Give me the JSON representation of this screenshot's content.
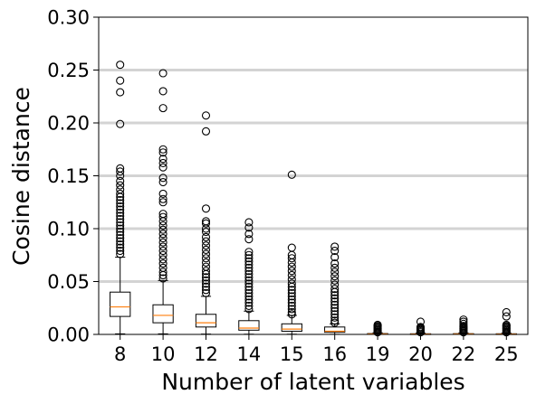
{
  "chart_data": {
    "type": "box",
    "title": "",
    "xlabel": "Number of latent variables",
    "ylabel": "Cosine distance",
    "ylim": [
      0.0,
      0.3
    ],
    "yticks": [
      "0.00",
      "0.05",
      "0.10",
      "0.15",
      "0.20",
      "0.25",
      "0.30"
    ],
    "grid": "horizontal",
    "categories": [
      "8",
      "10",
      "12",
      "14",
      "15",
      "16",
      "19",
      "20",
      "22",
      "25"
    ],
    "boxes": [
      {
        "category": "8",
        "q1": 0.017,
        "median": 0.026,
        "q3": 0.04,
        "whisker_low": 0.0005,
        "whisker_high": 0.073,
        "outliers": [
          0.255,
          0.24,
          0.229,
          0.199,
          0.157,
          0.154,
          0.15,
          0.145,
          0.141,
          0.137,
          0.133,
          0.13,
          0.127,
          0.124,
          0.121,
          0.118,
          0.115,
          0.112,
          0.109,
          0.106,
          0.103,
          0.1,
          0.097,
          0.094,
          0.091,
          0.088,
          0.085,
          0.082,
          0.079,
          0.076
        ]
      },
      {
        "category": "10",
        "q1": 0.011,
        "median": 0.018,
        "q3": 0.028,
        "whisker_low": 0.0005,
        "whisker_high": 0.051,
        "outliers": [
          0.247,
          0.23,
          0.214,
          0.175,
          0.172,
          0.166,
          0.162,
          0.158,
          0.148,
          0.144,
          0.133,
          0.128,
          0.125,
          0.114,
          0.111,
          0.107,
          0.103,
          0.099,
          0.095,
          0.091,
          0.087,
          0.083,
          0.079,
          0.075,
          0.071,
          0.067,
          0.063,
          0.059,
          0.056,
          0.053
        ]
      },
      {
        "category": "12",
        "q1": 0.007,
        "median": 0.011,
        "q3": 0.019,
        "whisker_low": 0.0003,
        "whisker_high": 0.036,
        "outliers": [
          0.207,
          0.192,
          0.119,
          0.107,
          0.105,
          0.1,
          0.097,
          0.092,
          0.088,
          0.084,
          0.08,
          0.076,
          0.072,
          0.068,
          0.064,
          0.06,
          0.057,
          0.054,
          0.051,
          0.048,
          0.045,
          0.042,
          0.039
        ]
      },
      {
        "category": "14",
        "q1": 0.004,
        "median": 0.006,
        "q3": 0.013,
        "whisker_low": 0.0002,
        "whisker_high": 0.022,
        "outliers": [
          0.106,
          0.101,
          0.095,
          0.09,
          0.078,
          0.075,
          0.072,
          0.069,
          0.066,
          0.063,
          0.06,
          0.057,
          0.054,
          0.051,
          0.048,
          0.045,
          0.042,
          0.039,
          0.036,
          0.033,
          0.03,
          0.027,
          0.024
        ]
      },
      {
        "category": "15",
        "q1": 0.003,
        "median": 0.005,
        "q3": 0.01,
        "whisker_low": 0.0002,
        "whisker_high": 0.018,
        "outliers": [
          0.151,
          0.082,
          0.075,
          0.072,
          0.068,
          0.064,
          0.06,
          0.056,
          0.052,
          0.048,
          0.045,
          0.042,
          0.039,
          0.036,
          0.033,
          0.03,
          0.027,
          0.024,
          0.021,
          0.019
        ]
      },
      {
        "category": "16",
        "q1": 0.002,
        "median": 0.003,
        "q3": 0.007,
        "whisker_low": 0.0001,
        "whisker_high": 0.01,
        "outliers": [
          0.083,
          0.079,
          0.073,
          0.067,
          0.063,
          0.059,
          0.055,
          0.051,
          0.047,
          0.043,
          0.04,
          0.037,
          0.034,
          0.031,
          0.028,
          0.025,
          0.022,
          0.019,
          0.016,
          0.013,
          0.011
        ]
      },
      {
        "category": "19",
        "q1": 0.0002,
        "median": 0.0004,
        "q3": 0.0008,
        "whisker_low": 0.0,
        "whisker_high": 0.0015,
        "outliers": [
          0.009,
          0.008,
          0.007,
          0.006,
          0.005,
          0.004,
          0.003,
          0.002
        ]
      },
      {
        "category": "20",
        "q1": 0.0002,
        "median": 0.0003,
        "q3": 0.0006,
        "whisker_low": 0.0,
        "whisker_high": 0.0012,
        "outliers": [
          0.012,
          0.007,
          0.006,
          0.005,
          0.004,
          0.003,
          0.002
        ]
      },
      {
        "category": "22",
        "q1": 0.0002,
        "median": 0.0004,
        "q3": 0.0007,
        "whisker_low": 0.0,
        "whisker_high": 0.0014,
        "outliers": [
          0.014,
          0.012,
          0.01,
          0.008,
          0.007,
          0.006,
          0.005,
          0.004,
          0.003,
          0.002
        ]
      },
      {
        "category": "25",
        "q1": 0.0002,
        "median": 0.0003,
        "q3": 0.0006,
        "whisker_low": 0.0,
        "whisker_high": 0.0012,
        "outliers": [
          0.021,
          0.017,
          0.009,
          0.008,
          0.007,
          0.006,
          0.005,
          0.004,
          0.003,
          0.002
        ]
      }
    ],
    "colors": {
      "box": "#000000",
      "median": "#ff7f0e",
      "grid": "#d3d3d3",
      "outlier": "#000000"
    }
  }
}
